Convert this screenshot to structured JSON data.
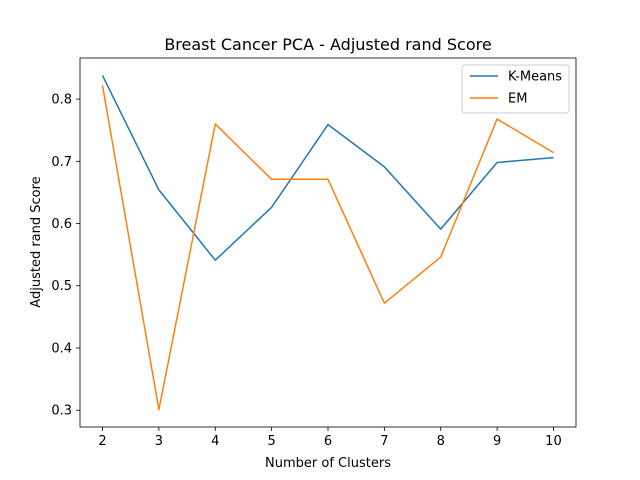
{
  "chart_data": {
    "type": "line",
    "title": "Breast Cancer PCA - Adjusted rand Score",
    "xlabel": "Number of Clusters",
    "ylabel": "Adjusted rand Score",
    "x": [
      2,
      3,
      4,
      5,
      6,
      7,
      8,
      9,
      10
    ],
    "xticks": [
      "2",
      "3",
      "4",
      "5",
      "6",
      "7",
      "8",
      "9",
      "10"
    ],
    "yticks": [
      0.3,
      0.4,
      0.5,
      0.6,
      0.7,
      0.8
    ],
    "ytick_labels": [
      "0.3",
      "0.4",
      "0.5",
      "0.6",
      "0.7",
      "0.8"
    ],
    "xlim": [
      1.6,
      10.4
    ],
    "ylim": [
      0.273,
      0.866
    ],
    "grid": false,
    "legend_position": "top-right",
    "series": [
      {
        "name": "K-Means",
        "color": "#1f77b4",
        "values": [
          0.838,
          0.654,
          0.541,
          0.626,
          0.759,
          0.691,
          0.591,
          0.698,
          0.706
        ]
      },
      {
        "name": "EM",
        "color": "#ff7f0e",
        "values": [
          0.822,
          0.301,
          0.76,
          0.671,
          0.671,
          0.472,
          0.546,
          0.768,
          0.714
        ]
      }
    ]
  }
}
